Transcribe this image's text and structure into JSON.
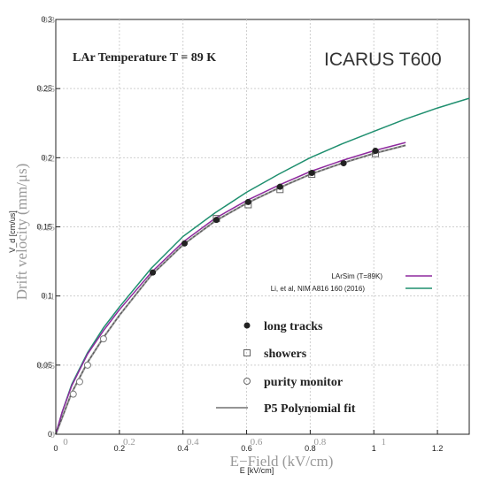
{
  "chart_data": {
    "type": "line",
    "title_left": "LAr Temperature T = 89 K",
    "title_right": "ICARUS T600",
    "ylabel_main": "Drift velocity (mm/μs)",
    "ylabel_alt": "V_d [cm/us]",
    "xlabel_main": "E−Field (kV/cm)",
    "xlabel_alt": "E [kV/cm]",
    "xlim": [
      0,
      1.3
    ],
    "ylim": [
      0,
      0.3
    ],
    "x_ticks_a": [
      "0",
      "0.2",
      "0.4",
      "0.6",
      "0.8",
      "1",
      "1.2"
    ],
    "x_ticks_b": [
      "0",
      "0.2",
      "0.4",
      "0.6",
      "0.8",
      "1"
    ],
    "y_ticks_a": [
      "0",
      "0.05",
      "0.1",
      "0.15",
      "0.2",
      "0.25",
      "0.3"
    ],
    "y_ticks_b": [
      "0",
      "0.05",
      "0.1",
      "0.15",
      "0.2",
      "0.25",
      "0.3"
    ],
    "x_tick_values_a": [
      0,
      0.2,
      0.4,
      0.6,
      0.8,
      1.0,
      1.2
    ],
    "x_tick_values_b": [
      0,
      0.2,
      0.4,
      0.6,
      0.8,
      1.0
    ],
    "y_tick_values": [
      0,
      0.05,
      0.1,
      0.15,
      0.2,
      0.25,
      0.3
    ],
    "grid": true,
    "colors": {
      "larsim": "#8e2a9e",
      "li": "#1f8f6f",
      "poly": "#555555",
      "gray_curve": "#999999"
    },
    "series": [
      {
        "name": "LArSim (T=89K)",
        "x": [
          0,
          0.02,
          0.05,
          0.1,
          0.15,
          0.2,
          0.3,
          0.4,
          0.5,
          0.6,
          0.7,
          0.8,
          0.9,
          1.0,
          1.1
        ],
        "y": [
          0,
          0.016,
          0.035,
          0.058,
          0.075,
          0.09,
          0.117,
          0.139,
          0.156,
          0.169,
          0.18,
          0.19,
          0.198,
          0.205,
          0.211
        ]
      },
      {
        "name": "Li, et al, NIM A816 160 (2016)",
        "x": [
          0,
          0.02,
          0.05,
          0.1,
          0.15,
          0.2,
          0.3,
          0.4,
          0.5,
          0.6,
          0.7,
          0.8,
          0.9,
          1.0,
          1.1,
          1.2,
          1.3
        ],
        "y": [
          0,
          0.016,
          0.036,
          0.059,
          0.077,
          0.092,
          0.12,
          0.143,
          0.16,
          0.175,
          0.188,
          0.2,
          0.21,
          0.219,
          0.228,
          0.236,
          0.243
        ]
      },
      {
        "name": "P5 Polynomial fit",
        "x": [
          0,
          0.05,
          0.1,
          0.15,
          0.2,
          0.3,
          0.4,
          0.5,
          0.6,
          0.7,
          0.8,
          0.9,
          1.0,
          1.1
        ],
        "y": [
          0,
          0.03,
          0.052,
          0.07,
          0.086,
          0.115,
          0.137,
          0.154,
          0.167,
          0.178,
          0.188,
          0.196,
          0.203,
          0.209
        ]
      },
      {
        "name": "long tracks",
        "x": [
          0.305,
          0.405,
          0.505,
          0.605,
          0.705,
          0.805,
          0.905,
          1.005
        ],
        "y": [
          0.117,
          0.138,
          0.155,
          0.168,
          0.179,
          0.189,
          0.196,
          0.205
        ]
      },
      {
        "name": "showers",
        "x": [
          0.505,
          0.605,
          0.705,
          0.805,
          1.005
        ],
        "y": [
          0.156,
          0.166,
          0.177,
          0.188,
          0.203
        ]
      },
      {
        "name": "purity monitor",
        "x": [
          0.055,
          0.075,
          0.1,
          0.15
        ],
        "y": [
          0.029,
          0.038,
          0.05,
          0.069
        ]
      }
    ],
    "legend_small": [
      "LArSim (T=89K)",
      "Li, et al, NIM A816 160 (2016)"
    ],
    "legend_big": [
      "long tracks",
      "showers",
      "purity monitor",
      "P5 Polynomial fit"
    ]
  }
}
